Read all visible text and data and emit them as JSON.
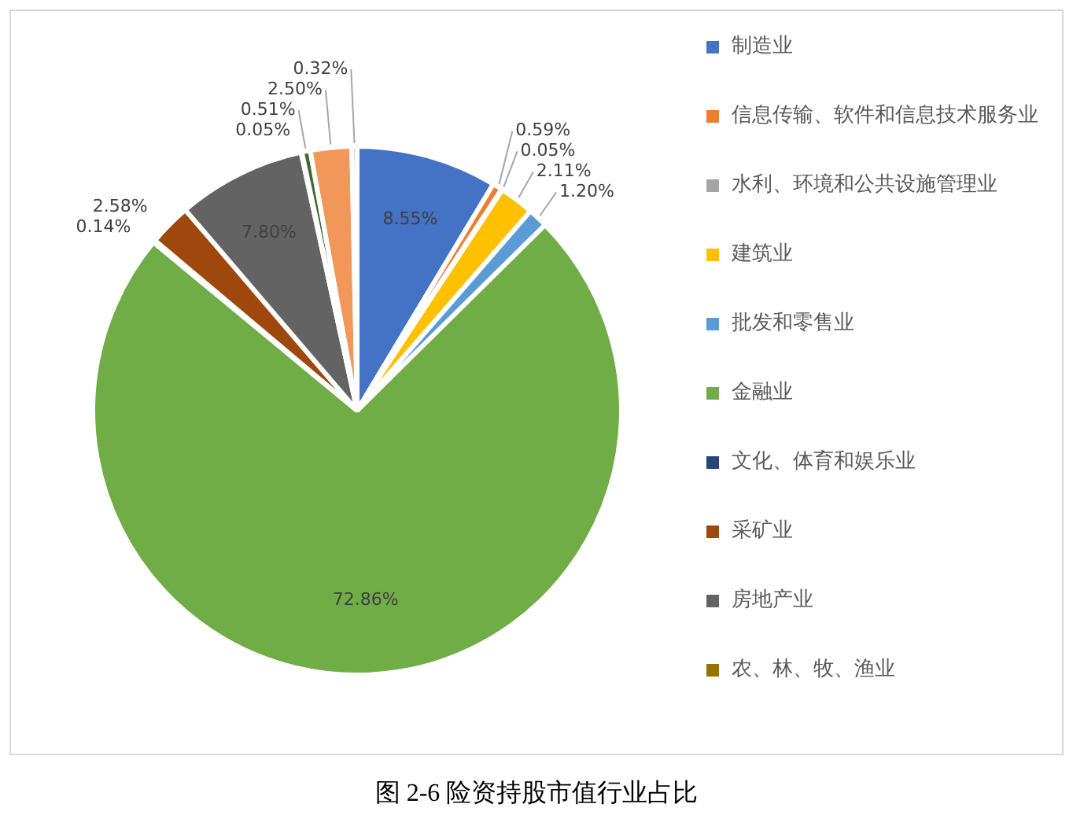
{
  "chart_data": {
    "type": "pie",
    "title": "图 2-6  险资持股市值行业占比",
    "categories": [
      "制造业",
      "信息传输、软件和信息技术服务业",
      "水利、环境和公共设施管理业",
      "建筑业",
      "批发和零售业",
      "金融业",
      "文化、体育和娱乐业",
      "采矿业",
      "房地产业",
      "农、林、牧、渔业",
      null,
      null,
      null
    ],
    "values": [
      8.55,
      0.59,
      0.05,
      2.11,
      1.2,
      72.86,
      0.14,
      2.58,
      7.8,
      0.05,
      0.51,
      2.5,
      0.32
    ],
    "value_labels": [
      "8.55%",
      "0.59%",
      "0.05%",
      "2.11%",
      "1.20%",
      "72.86%",
      "0.14%",
      "2.58%",
      "7.80%",
      "0.05%",
      "0.51%",
      "2.50%",
      "0.32%"
    ],
    "colors": [
      "#4472c4",
      "#ed7d31",
      "#a5a5a5",
      "#ffc000",
      "#5b9bd5",
      "#70ad47",
      "#264478",
      "#9e480e",
      "#636363",
      "#997300",
      "#43682b",
      "#f1975a",
      "#b7b7b7"
    ],
    "legend": "right"
  }
}
